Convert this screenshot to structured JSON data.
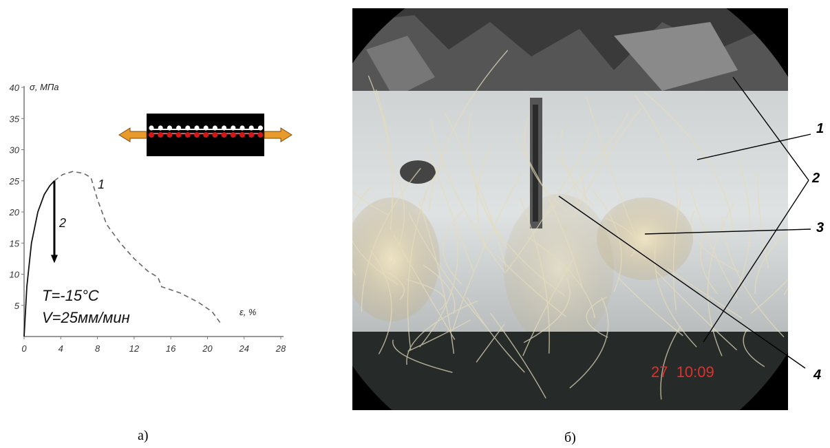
{
  "panel_a": {
    "caption": "а)",
    "note_temperature": "T=-15°C",
    "note_speed": "V=25мм/мин",
    "arrow_label": "2",
    "inset_icon": "tensile-specimen-schematic-icon"
  },
  "panel_b": {
    "caption": "б)",
    "timestamp": "27  10:09",
    "callouts": [
      "1",
      "2",
      "3",
      "4"
    ],
    "colors": {
      "timestamp": "#e0302a",
      "background": "#000000",
      "ice": "#d8dcdc",
      "fiber": "#e6dcbc"
    }
  },
  "chart_data": {
    "type": "line",
    "title": "",
    "xlabel": "ε, %",
    "ylabel": "σ, МПа",
    "xlim": [
      0,
      28
    ],
    "ylim": [
      0,
      40
    ],
    "xticks": [
      0,
      4,
      8,
      12,
      16,
      20,
      24,
      28
    ],
    "yticks": [
      5,
      10,
      15,
      20,
      25,
      30,
      35,
      40
    ],
    "grid": false,
    "series": [
      {
        "name": "1",
        "style": "solid",
        "x": [
          0,
          0.3,
          0.8,
          1.5,
          2.2,
          2.8,
          3.3
        ],
        "y": [
          0,
          8,
          15,
          20,
          22.8,
          24.2,
          25
        ]
      },
      {
        "name": "1",
        "style": "dashed",
        "x": [
          3.3,
          4.2,
          5.3,
          6.5,
          7.3,
          8,
          9,
          10.5,
          12,
          13.5,
          14.6,
          15,
          17,
          19,
          20.5,
          21.5
        ],
        "y": [
          25,
          26,
          26.5,
          26.2,
          25.5,
          22,
          18,
          15,
          12.5,
          10.5,
          9.5,
          8,
          7,
          5.5,
          4,
          2
        ]
      }
    ],
    "drop_arrow": {
      "x": 3.3,
      "y_from": 25,
      "y_to": 12
    }
  }
}
